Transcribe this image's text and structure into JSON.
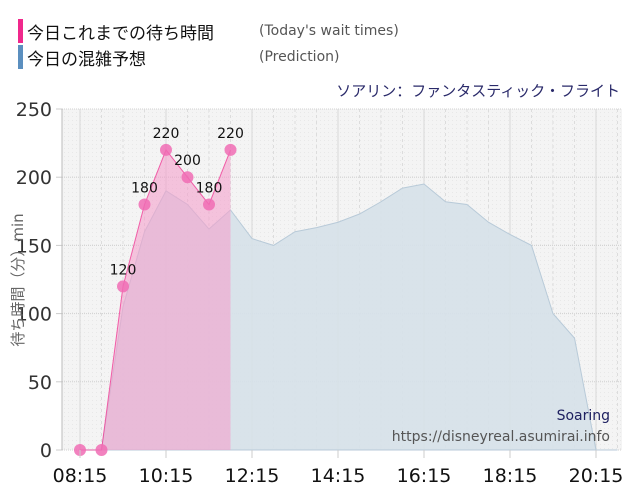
{
  "legend": {
    "items": [
      {
        "label": "今日これまでの待ち時間",
        "sublabel": "(Today's wait times)",
        "color": "#f0288c"
      },
      {
        "label": "今日の混雑予想",
        "sublabel": "(Prediction)",
        "color": "#5b8fbf"
      }
    ]
  },
  "ride_title": "ソアリン：ファンタスティック・フライト",
  "watermark": {
    "name": "Soaring",
    "url": "https://disneyreal.asumirai.info"
  },
  "chart_data": {
    "type": "area",
    "title": "ソアリン：ファンタスティック・フライト",
    "xlabel": "",
    "ylabel": "待ち時間（分）min",
    "ylim": [
      0,
      250
    ],
    "yticks": [
      0,
      50,
      100,
      150,
      200,
      250
    ],
    "xticks": [
      "08:15",
      "10:15",
      "12:15",
      "14:15",
      "16:15",
      "18:15",
      "20:15"
    ],
    "grid": true,
    "legend_position": "top-left",
    "series": [
      {
        "name": "今日これまでの待ち時間 (Today's wait times)",
        "color": "#f0288c",
        "x": [
          "08:15",
          "08:45",
          "09:15",
          "09:45",
          "10:15",
          "10:45",
          "11:15",
          "11:45"
        ],
        "values": [
          0,
          0,
          120,
          180,
          220,
          200,
          180,
          220
        ],
        "labels": [
          "",
          "",
          "120",
          "180",
          "220",
          "200",
          "180",
          "220"
        ]
      },
      {
        "name": "今日の混雑予想 (Prediction)",
        "color": "#b8cad8",
        "x": [
          "08:15",
          "08:45",
          "09:15",
          "09:45",
          "10:15",
          "10:45",
          "11:15",
          "11:45",
          "12:15",
          "12:45",
          "13:15",
          "13:45",
          "14:15",
          "14:45",
          "15:15",
          "15:45",
          "16:15",
          "16:45",
          "17:15",
          "17:45",
          "18:15",
          "18:45",
          "19:15",
          "19:45",
          "20:15",
          "20:45"
        ],
        "values": [
          0,
          0,
          105,
          160,
          190,
          180,
          162,
          176,
          155,
          150,
          160,
          163,
          167,
          173,
          182,
          192,
          195,
          182,
          180,
          167,
          158,
          150,
          100,
          82,
          0,
          0
        ]
      }
    ]
  }
}
